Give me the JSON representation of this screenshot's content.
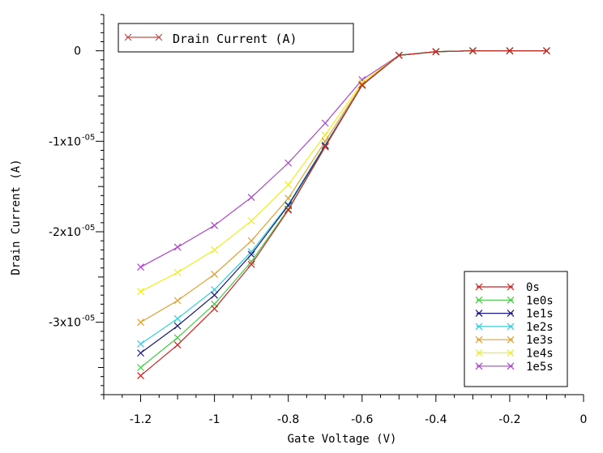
{
  "chart_data": {
    "type": "line",
    "title": "",
    "xlabel": "Gate Voltage (V)",
    "ylabel": "Drain Current (A)",
    "title_legend": "Drain Current (A)",
    "title_legend_color": "#c0504d",
    "xlim": [
      -1.3,
      0.0
    ],
    "ylim": [
      -3.8e-05,
      4e-06
    ],
    "x_ticks": [
      -1.2,
      -1.0,
      -0.8,
      -0.6,
      -0.4,
      -0.2,
      0.0
    ],
    "x_tick_labels": [
      "-1.2",
      "-1",
      "-0.8",
      "-0.6",
      "-0.4",
      "-0.2",
      "0"
    ],
    "y_ticks": [
      0,
      -1e-05,
      -2e-05,
      -3e-05
    ],
    "y_tick_labels": [
      "0",
      "-1x10",
      "-2x10",
      "-3x10"
    ],
    "y_tick_exp": "-05",
    "legend_position": "bottom-right",
    "x": [
      -1.2,
      -1.1,
      -1.0,
      -0.9,
      -0.8,
      -0.7,
      -0.6,
      -0.5,
      -0.4,
      -0.3,
      -0.2,
      -0.1
    ],
    "series": [
      {
        "name": "0s",
        "color": "#cc2222",
        "values": [
          -3.59e-05,
          -3.25e-05,
          -2.85e-05,
          -2.36e-05,
          -1.76e-05,
          -1.06e-05,
          -3.8e-06,
          -5e-07,
          -1e-07,
          0,
          0,
          0
        ]
      },
      {
        "name": "1e0s",
        "color": "#44cc44",
        "values": [
          -3.5e-05,
          -3.17e-05,
          -2.8e-05,
          -2.33e-05,
          -1.75e-05,
          -1.06e-05,
          -3.8e-06,
          -5e-07,
          -1e-07,
          0,
          0,
          0
        ]
      },
      {
        "name": "1e1s",
        "color": "#1a1a7a",
        "values": [
          -3.34e-05,
          -3.04e-05,
          -2.7e-05,
          -2.25e-05,
          -1.71e-05,
          -1.05e-05,
          -3.8e-06,
          -5e-07,
          -1e-07,
          0,
          0,
          0
        ]
      },
      {
        "name": "1e2s",
        "color": "#33ccdd",
        "values": [
          -3.24e-05,
          -2.96e-05,
          -2.64e-05,
          -2.22e-05,
          -1.7e-05,
          -1.04e-05,
          -3.8e-06,
          -5e-07,
          -1e-07,
          0,
          0,
          0
        ]
      },
      {
        "name": "1e3s",
        "color": "#e0a030",
        "values": [
          -3e-05,
          -2.76e-05,
          -2.47e-05,
          -2.1e-05,
          -1.63e-05,
          -1e-05,
          -3.7e-06,
          -5e-07,
          -1e-07,
          0,
          0,
          0
        ]
      },
      {
        "name": "1e4s",
        "color": "#eeee22",
        "values": [
          -2.66e-05,
          -2.45e-05,
          -2.2e-05,
          -1.88e-05,
          -1.48e-05,
          -9.3e-06,
          -3.5e-06,
          -5e-07,
          -1e-07,
          0,
          0,
          0
        ]
      },
      {
        "name": "1e5s",
        "color": "#aa44cc",
        "values": [
          -2.39e-05,
          -2.17e-05,
          -1.93e-05,
          -1.62e-05,
          -1.24e-05,
          -8e-06,
          -3.2e-06,
          -5e-07,
          -1e-07,
          0,
          0,
          0
        ]
      }
    ]
  }
}
